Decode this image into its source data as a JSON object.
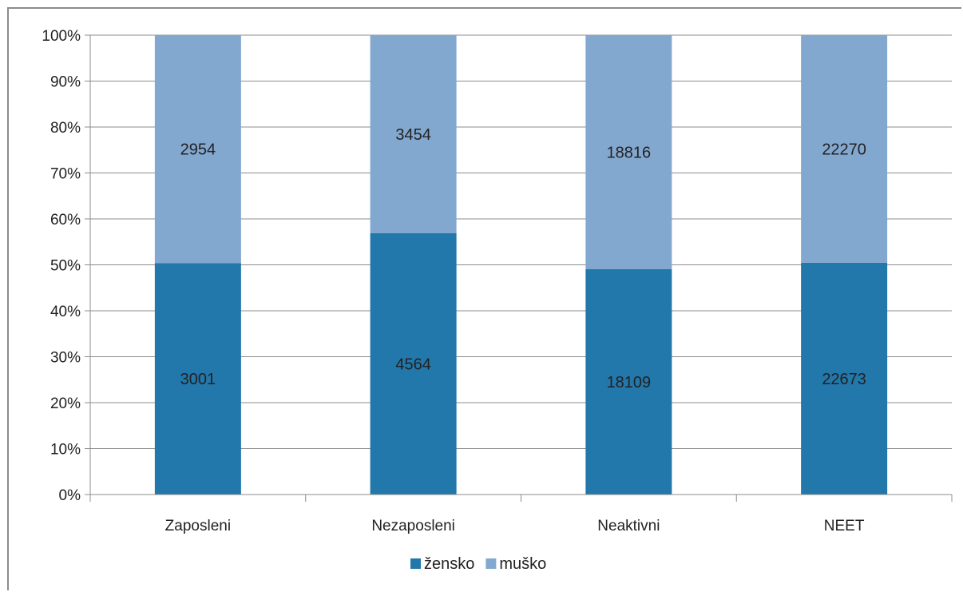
{
  "chart_data": {
    "type": "bar",
    "stacked": "percent",
    "categories": [
      "Zaposleni",
      "Nezaposleni",
      "Neaktivni",
      "NEET"
    ],
    "series": [
      {
        "name": "žensko",
        "values": [
          3001,
          4564,
          18109,
          22673
        ],
        "color": "#2277ab"
      },
      {
        "name": "muško",
        "values": [
          2954,
          3454,
          18816,
          22270
        ],
        "color": "#83a8d0"
      }
    ],
    "y_ticks": [
      "0%",
      "10%",
      "20%",
      "30%",
      "40%",
      "50%",
      "60%",
      "70%",
      "80%",
      "90%",
      "100%"
    ],
    "ylim": [
      0,
      100
    ],
    "grid": true,
    "legend_position": "bottom"
  }
}
